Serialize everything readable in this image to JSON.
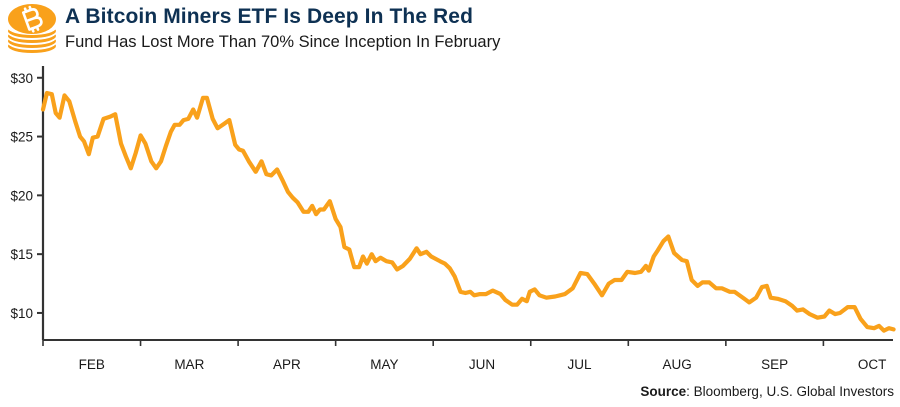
{
  "header": {
    "title": "A Bitcoin Miners ETF Is Deep In The Red",
    "subtitle": "Fund Has Lost More Than 70% Since Inception In February",
    "logo_icon": "bitcoin-coin-stack-icon"
  },
  "footer": {
    "source_label": "Source",
    "source_text": ": Bloomberg, U.S. Global Investors"
  },
  "colors": {
    "line": "#f9a11b",
    "title": "#0e3153",
    "axis": "#333333"
  },
  "chart_data": {
    "type": "line",
    "title": "A Bitcoin Miners ETF Is Deep In The Red",
    "subtitle": "Fund Has Lost More Than 70% Since Inception In February",
    "xlabel": "",
    "ylabel": "",
    "x_unit": "months since start of February (0 = Feb start, 1 = Mar start, ...)",
    "xlim": [
      0,
      8.72
    ],
    "ylim": [
      7.7,
      31
    ],
    "grid": false,
    "legend": "none",
    "x_tick_labels": [
      "FEB",
      "MAR",
      "APR",
      "MAY",
      "JUN",
      "JUL",
      "AUG",
      "SEP",
      "OCT"
    ],
    "y_ticks": [
      10,
      15,
      20,
      25,
      30
    ],
    "y_tick_labels": [
      "$10",
      "$15",
      "$20",
      "$25",
      "$30"
    ],
    "series": [
      {
        "name": "Bitcoin Miners ETF",
        "x": [
          0.0,
          0.04,
          0.09,
          0.13,
          0.17,
          0.22,
          0.27,
          0.33,
          0.38,
          0.42,
          0.47,
          0.51,
          0.56,
          0.62,
          0.69,
          0.74,
          0.8,
          0.85,
          0.9,
          0.95,
          1.0,
          1.05,
          1.11,
          1.16,
          1.21,
          1.26,
          1.31,
          1.35,
          1.4,
          1.44,
          1.49,
          1.54,
          1.58,
          1.64,
          1.68,
          1.74,
          1.79,
          1.86,
          1.91,
          1.97,
          2.01,
          2.05,
          2.11,
          2.18,
          2.24,
          2.29,
          2.34,
          2.4,
          2.46,
          2.51,
          2.56,
          2.61,
          2.67,
          2.72,
          2.76,
          2.8,
          2.84,
          2.88,
          2.94,
          3.0,
          3.05,
          3.09,
          3.14,
          3.19,
          3.24,
          3.28,
          3.32,
          3.37,
          3.41,
          3.46,
          3.52,
          3.58,
          3.63,
          3.69,
          3.76,
          3.83,
          3.87,
          3.93,
          3.98,
          4.07,
          4.12,
          4.17,
          4.22,
          4.28,
          4.33,
          4.38,
          4.42,
          4.48,
          4.54,
          4.61,
          4.69,
          4.74,
          4.81,
          4.86,
          4.91,
          4.96,
          4.99,
          5.04,
          5.09,
          5.16,
          5.25,
          5.3,
          5.35,
          5.43,
          5.51,
          5.58,
          5.65,
          5.73,
          5.8,
          5.86,
          5.93,
          5.99,
          6.07,
          6.13,
          6.18,
          6.21,
          6.26,
          6.3,
          6.36,
          6.41,
          6.47,
          6.55,
          6.6,
          6.65,
          6.71,
          6.76,
          6.83,
          6.9,
          6.96,
          7.04,
          7.09,
          7.14,
          7.19,
          7.24,
          7.31,
          7.37,
          7.42,
          7.46,
          7.53,
          7.61,
          7.68,
          7.73,
          7.79,
          7.86,
          7.94,
          8.01,
          8.06,
          8.12,
          8.17,
          8.25,
          8.32,
          8.38,
          8.45,
          8.52,
          8.57,
          8.62,
          8.67,
          8.72
        ],
        "values": [
          27.3,
          28.7,
          28.6,
          27.0,
          26.6,
          28.5,
          28.0,
          26.3,
          25.0,
          24.6,
          23.5,
          24.9,
          25.0,
          26.5,
          26.7,
          26.9,
          24.4,
          23.3,
          22.3,
          23.6,
          25.1,
          24.4,
          22.9,
          22.3,
          22.9,
          24.2,
          25.4,
          26.0,
          26.0,
          26.4,
          26.5,
          27.3,
          26.6,
          28.3,
          28.3,
          26.5,
          25.7,
          26.1,
          26.4,
          24.3,
          23.9,
          23.8,
          22.9,
          22.0,
          22.9,
          21.8,
          21.7,
          22.2,
          21.2,
          20.3,
          19.8,
          19.4,
          18.6,
          18.6,
          19.1,
          18.4,
          18.8,
          18.8,
          19.5,
          18.0,
          17.3,
          15.6,
          15.4,
          13.9,
          13.9,
          14.8,
          14.2,
          15.0,
          14.4,
          14.7,
          14.4,
          14.3,
          13.7,
          14.0,
          14.6,
          15.5,
          15.0,
          15.2,
          14.8,
          14.4,
          14.2,
          13.8,
          13.1,
          11.8,
          11.7,
          11.8,
          11.5,
          11.6,
          11.6,
          11.9,
          11.6,
          11.1,
          10.7,
          10.7,
          11.2,
          11.0,
          11.8,
          12.0,
          11.5,
          11.3,
          11.4,
          11.5,
          11.6,
          12.1,
          13.4,
          13.3,
          12.5,
          11.5,
          12.5,
          12.8,
          12.8,
          13.5,
          13.4,
          13.5,
          14.0,
          13.6,
          14.8,
          15.3,
          16.1,
          16.5,
          15.1,
          14.5,
          14.4,
          12.8,
          12.3,
          12.6,
          12.6,
          12.1,
          12.1,
          11.8,
          11.8,
          11.5,
          11.2,
          10.9,
          11.3,
          12.2,
          12.3,
          11.3,
          11.2,
          11.0,
          10.6,
          10.2,
          10.3,
          9.9,
          9.6,
          9.7,
          10.2,
          9.9,
          10.0,
          10.5,
          10.5,
          9.5,
          8.8,
          8.7,
          8.9,
          8.5,
          8.7,
          8.6
        ]
      }
    ]
  }
}
